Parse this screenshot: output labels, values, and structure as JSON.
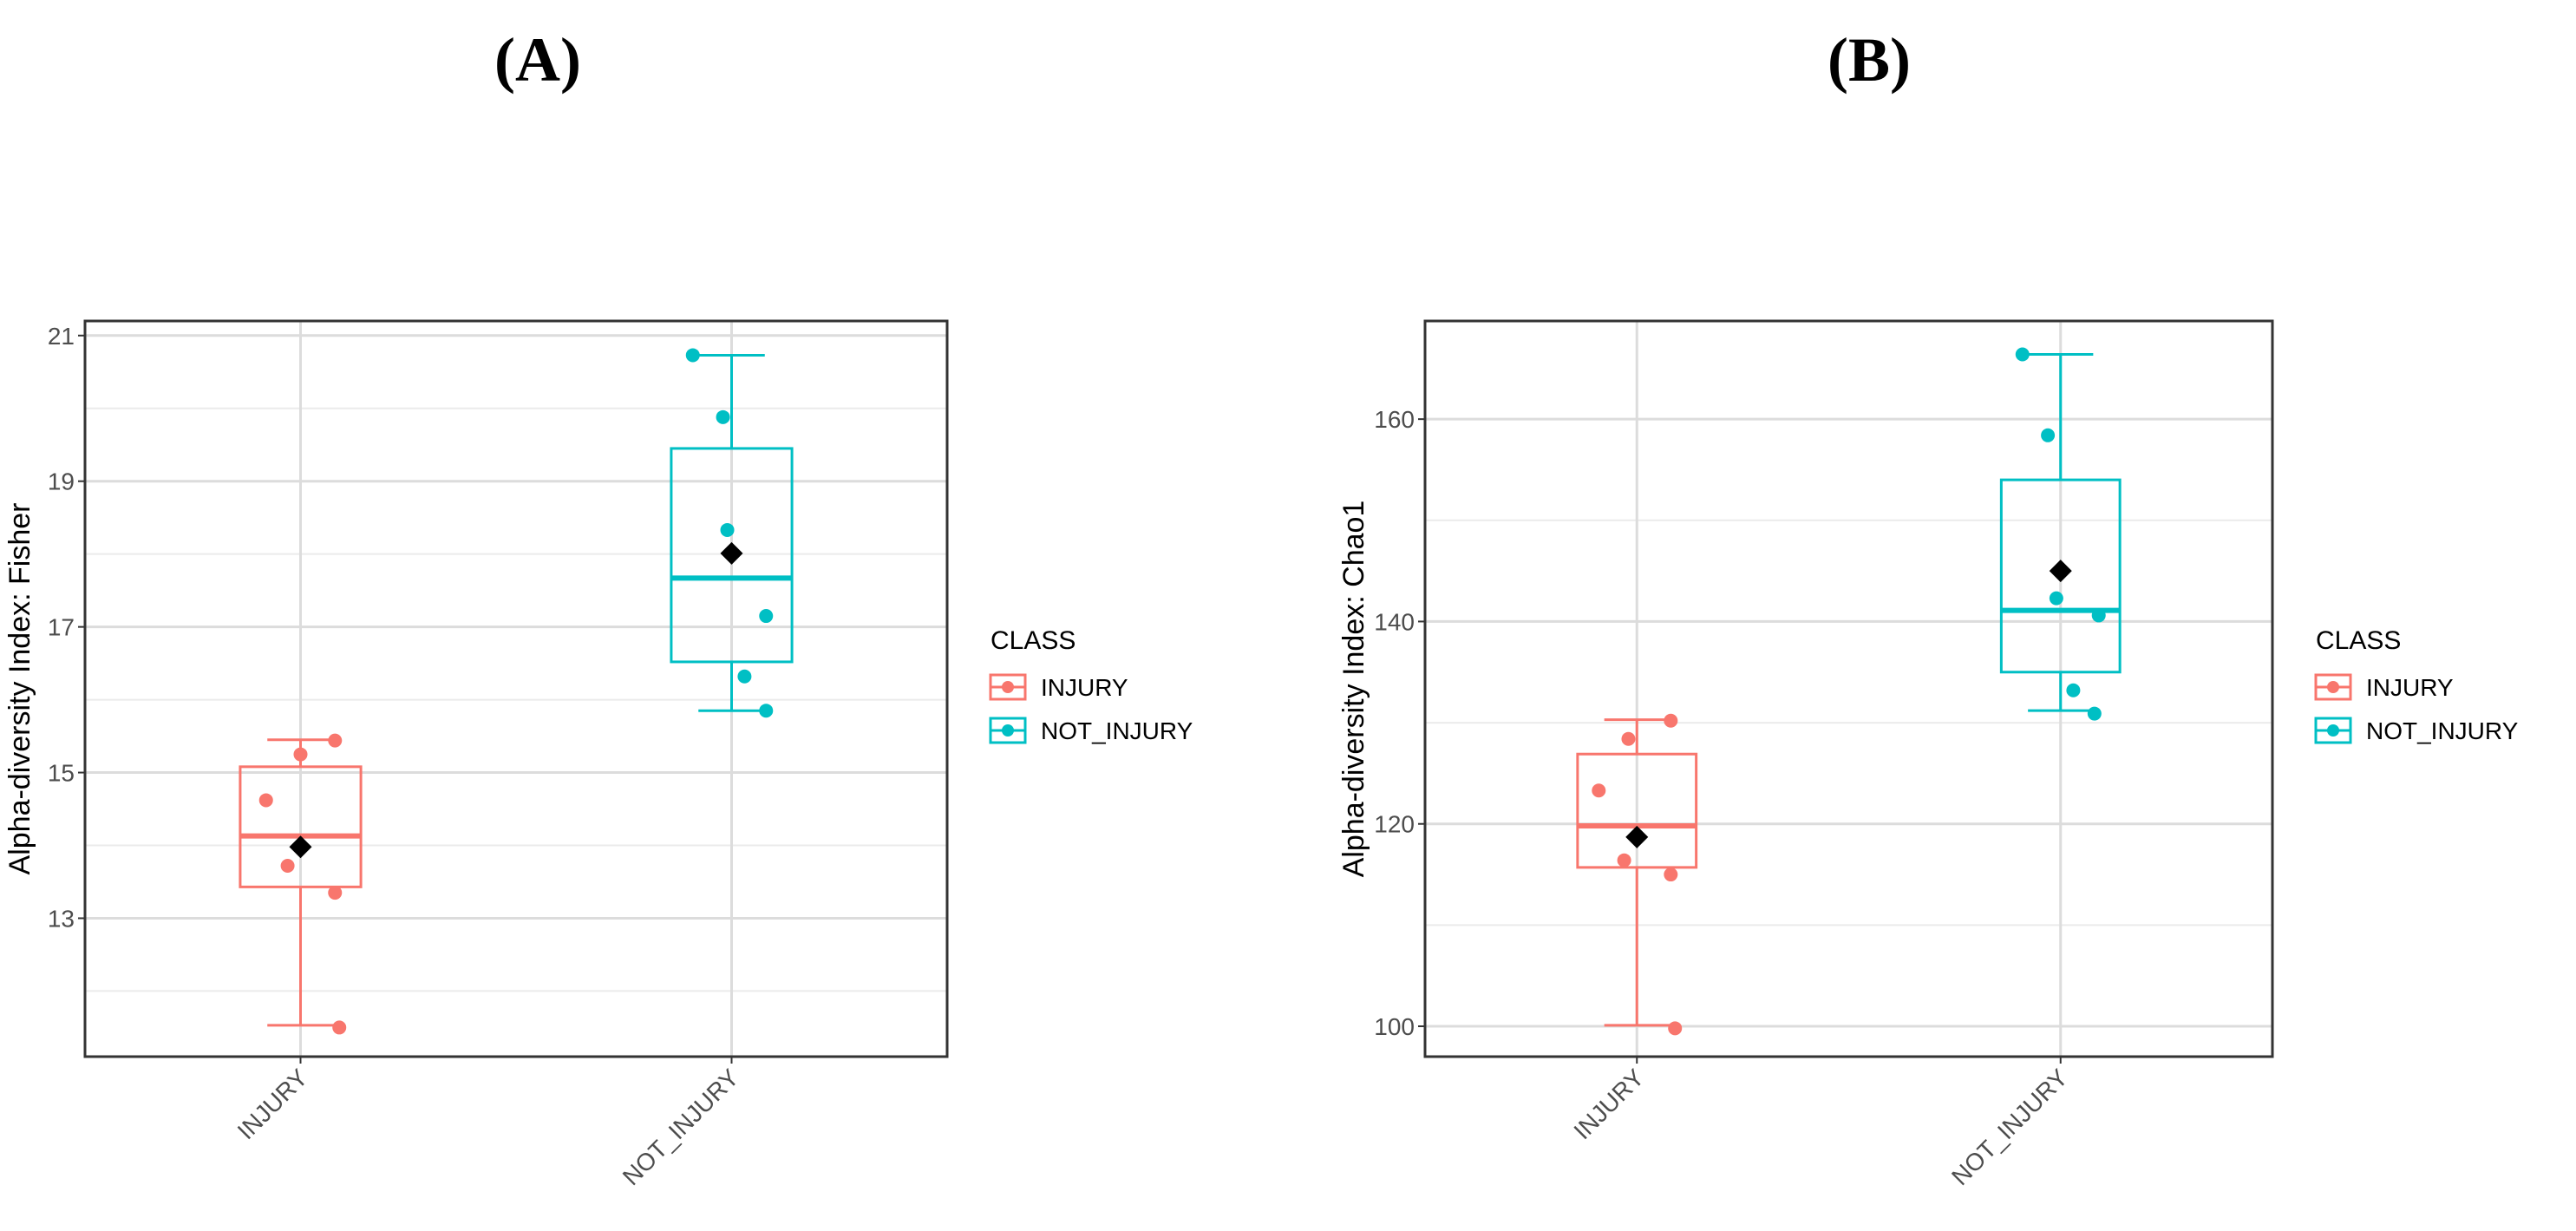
{
  "panels": [
    {
      "label": "(A)"
    },
    {
      "label": "(B)"
    }
  ],
  "chart_data": [
    {
      "type": "box",
      "panel": "(A)",
      "title": "",
      "xlabel": "",
      "ylabel": "Alpha-diversity Index: Fisher",
      "categories": [
        "INJURY",
        "NOT_INJURY"
      ],
      "ylim": [
        11.1,
        21.2
      ],
      "yticks": [
        13,
        15,
        17,
        19,
        21
      ],
      "ytick_labels": [
        "13",
        "15",
        "17",
        "19",
        "21"
      ],
      "legend": {
        "title": "CLASS",
        "entries": [
          "INJURY",
          "NOT_INJURY"
        ],
        "position": "right"
      },
      "series": [
        {
          "name": "INJURY",
          "color": "#F8766D",
          "box": {
            "whisker_low": 11.53,
            "q1": 13.43,
            "median": 14.13,
            "q3": 15.08,
            "whisker_high": 15.45
          },
          "mean": 13.98,
          "points": [
            {
              "jitter": 0.08,
              "y": 15.44
            },
            {
              "jitter": 0.0,
              "y": 15.25
            },
            {
              "jitter": -0.08,
              "y": 14.62
            },
            {
              "jitter": -0.03,
              "y": 13.72
            },
            {
              "jitter": 0.08,
              "y": 13.35
            },
            {
              "jitter": 0.09,
              "y": 11.5
            }
          ]
        },
        {
          "name": "NOT_INJURY",
          "color": "#00BFC4",
          "box": {
            "whisker_low": 15.85,
            "q1": 16.52,
            "median": 17.67,
            "q3": 19.45,
            "whisker_high": 20.73
          },
          "mean": 18.01,
          "points": [
            {
              "jitter": -0.09,
              "y": 20.73
            },
            {
              "jitter": -0.02,
              "y": 19.88
            },
            {
              "jitter": -0.01,
              "y": 18.33
            },
            {
              "jitter": 0.08,
              "y": 17.15
            },
            {
              "jitter": 0.03,
              "y": 16.32
            },
            {
              "jitter": 0.08,
              "y": 15.85
            }
          ]
        }
      ]
    },
    {
      "type": "box",
      "panel": "(B)",
      "title": "",
      "xlabel": "",
      "ylabel": "Alpha-diversity Index: Chao1",
      "categories": [
        "INJURY",
        "NOT_INJURY"
      ],
      "ylim": [
        97,
        169.7
      ],
      "yticks": [
        100,
        120,
        140,
        160
      ],
      "ytick_labels": [
        "100",
        "120",
        "140",
        "160"
      ],
      "legend": {
        "title": "CLASS",
        "entries": [
          "INJURY",
          "NOT_INJURY"
        ],
        "position": "right"
      },
      "series": [
        {
          "name": "INJURY",
          "color": "#F8766D",
          "box": {
            "whisker_low": 100.1,
            "q1": 115.7,
            "median": 119.8,
            "q3": 126.9,
            "whisker_high": 130.3
          },
          "mean": 118.7,
          "points": [
            {
              "jitter": 0.08,
              "y": 130.2
            },
            {
              "jitter": -0.02,
              "y": 128.4
            },
            {
              "jitter": -0.09,
              "y": 123.3
            },
            {
              "jitter": -0.03,
              "y": 116.4
            },
            {
              "jitter": 0.08,
              "y": 115.0
            },
            {
              "jitter": 0.09,
              "y": 99.8
            }
          ]
        },
        {
          "name": "NOT_INJURY",
          "color": "#00BFC4",
          "box": {
            "whisker_low": 131.2,
            "q1": 135.0,
            "median": 141.1,
            "q3": 154.0,
            "whisker_high": 166.4
          },
          "mean": 145.0,
          "points": [
            {
              "jitter": -0.09,
              "y": 166.4
            },
            {
              "jitter": -0.03,
              "y": 158.4
            },
            {
              "jitter": -0.01,
              "y": 142.3
            },
            {
              "jitter": 0.09,
              "y": 140.6
            },
            {
              "jitter": 0.03,
              "y": 133.2
            },
            {
              "jitter": 0.08,
              "y": 130.9
            }
          ]
        }
      ]
    }
  ]
}
